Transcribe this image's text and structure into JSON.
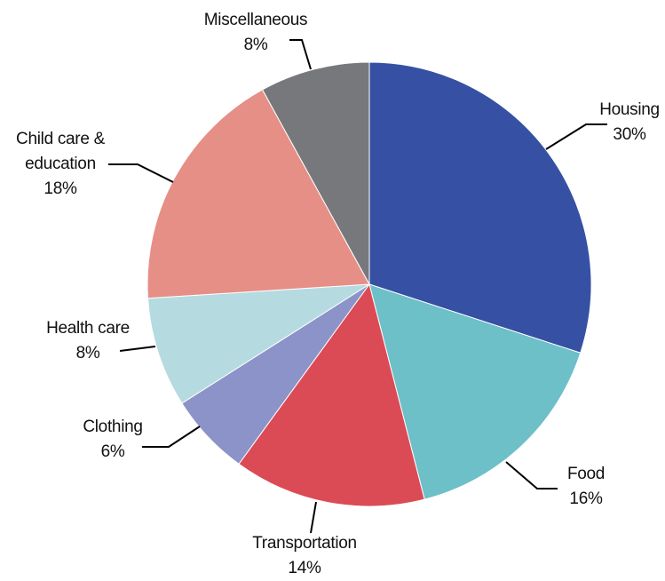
{
  "chart_data": {
    "type": "pie",
    "categories": [
      "Housing",
      "Food",
      "Transportation",
      "Clothing",
      "Health care",
      "Child care & education",
      "Miscellaneous"
    ],
    "values": [
      30,
      16,
      14,
      6,
      8,
      18,
      8
    ],
    "value_labels": [
      "30%",
      "16%",
      "14%",
      "6%",
      "8%",
      "18%",
      "8%"
    ],
    "colors": [
      "#3650a3",
      "#6dbfc8",
      "#db4b55",
      "#8b93c8",
      "#b5dbe0",
      "#e68f86",
      "#77787c"
    ]
  }
}
